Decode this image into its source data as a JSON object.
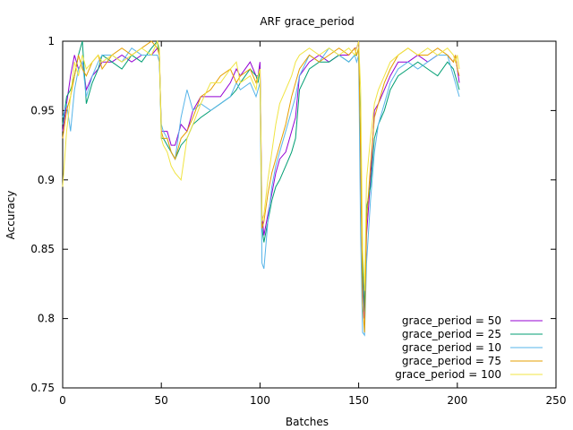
{
  "chart_data": {
    "type": "line",
    "title": "ARF grace_period",
    "xlabel": "Batches",
    "ylabel": "Accuracy",
    "xlim": [
      0,
      250
    ],
    "ylim": [
      0.75,
      1.0
    ],
    "x_ticks": [
      0,
      50,
      100,
      150,
      200,
      250
    ],
    "x_tick_labels": [
      "0",
      "50",
      "100",
      "150",
      "200",
      "250"
    ],
    "y_ticks": [
      0.75,
      0.8,
      0.85,
      0.9,
      0.95,
      1.0
    ],
    "y_tick_labels": [
      "0.75",
      "0.8",
      "0.85",
      "0.9",
      "0.95",
      "1"
    ],
    "grid": false,
    "legend_position": "bottom-right",
    "series": [
      {
        "name": "grace_period = 50",
        "color": "#9400d3",
        "x": [
          0,
          2,
          4,
          6,
          8,
          10,
          12,
          15,
          18,
          20,
          25,
          30,
          35,
          40,
          45,
          48,
          49,
          50,
          51,
          53,
          55,
          57,
          60,
          63,
          66,
          70,
          75,
          80,
          85,
          88,
          90,
          95,
          98,
          99,
          100,
          101,
          102,
          104,
          106,
          108,
          110,
          113,
          116,
          118,
          120,
          125,
          130,
          135,
          140,
          145,
          148,
          149,
          150,
          151,
          152,
          153,
          154,
          156,
          158,
          160,
          163,
          166,
          170,
          175,
          180,
          185,
          190,
          195,
          198,
          199,
          200,
          201
        ],
        "values": [
          0.935,
          0.955,
          0.975,
          0.99,
          0.98,
          0.985,
          0.965,
          0.975,
          0.98,
          0.985,
          0.985,
          0.99,
          0.985,
          0.99,
          0.99,
          0.995,
          0.99,
          0.935,
          0.935,
          0.935,
          0.925,
          0.925,
          0.94,
          0.935,
          0.95,
          0.96,
          0.96,
          0.96,
          0.97,
          0.98,
          0.975,
          0.985,
          0.975,
          0.975,
          0.985,
          0.875,
          0.86,
          0.875,
          0.89,
          0.905,
          0.915,
          0.92,
          0.935,
          0.945,
          0.975,
          0.985,
          0.99,
          0.985,
          0.99,
          0.99,
          0.995,
          0.995,
          1.0,
          0.91,
          0.83,
          0.8,
          0.86,
          0.9,
          0.95,
          0.955,
          0.965,
          0.975,
          0.985,
          0.985,
          0.99,
          0.985,
          0.99,
          0.99,
          0.985,
          0.99,
          0.98,
          0.97
        ]
      },
      {
        "name": "grace_period = 25",
        "color": "#009e73",
        "x": [
          0,
          2,
          4,
          6,
          8,
          10,
          12,
          15,
          18,
          20,
          25,
          30,
          35,
          40,
          45,
          48,
          49,
          50,
          51,
          53,
          55,
          57,
          60,
          63,
          66,
          70,
          75,
          80,
          85,
          88,
          90,
          95,
          98,
          99,
          100,
          101,
          102,
          104,
          106,
          108,
          110,
          113,
          116,
          118,
          120,
          125,
          130,
          135,
          140,
          145,
          148,
          149,
          150,
          151,
          152,
          153,
          154,
          156,
          158,
          160,
          163,
          166,
          170,
          175,
          180,
          185,
          190,
          195,
          198,
          199,
          200,
          201
        ],
        "values": [
          0.94,
          0.96,
          0.965,
          0.975,
          0.99,
          1.0,
          0.955,
          0.97,
          0.98,
          0.99,
          0.985,
          0.98,
          0.99,
          0.985,
          0.995,
          1.0,
          0.99,
          0.93,
          0.93,
          0.925,
          0.92,
          0.915,
          0.925,
          0.93,
          0.94,
          0.945,
          0.95,
          0.955,
          0.96,
          0.965,
          0.97,
          0.98,
          0.975,
          0.97,
          0.98,
          0.865,
          0.855,
          0.87,
          0.885,
          0.895,
          0.9,
          0.91,
          0.92,
          0.93,
          0.965,
          0.98,
          0.985,
          0.985,
          0.99,
          0.985,
          0.99,
          0.99,
          0.995,
          0.93,
          0.84,
          0.805,
          0.88,
          0.895,
          0.93,
          0.94,
          0.95,
          0.965,
          0.975,
          0.98,
          0.985,
          0.98,
          0.975,
          0.985,
          0.98,
          0.975,
          0.97,
          0.965
        ]
      },
      {
        "name": "grace_period = 10",
        "color": "#56b4e9",
        "x": [
          0,
          2,
          4,
          6,
          8,
          10,
          12,
          15,
          18,
          20,
          25,
          30,
          35,
          40,
          45,
          48,
          49,
          50,
          51,
          53,
          55,
          57,
          60,
          63,
          66,
          70,
          75,
          80,
          85,
          88,
          90,
          95,
          98,
          99,
          100,
          101,
          102,
          104,
          106,
          108,
          110,
          113,
          116,
          118,
          120,
          125,
          130,
          135,
          140,
          145,
          148,
          149,
          150,
          151,
          152,
          153,
          154,
          156,
          158,
          160,
          163,
          166,
          170,
          175,
          180,
          185,
          190,
          195,
          198,
          199,
          200,
          201
        ],
        "values": [
          0.945,
          0.955,
          0.935,
          0.965,
          0.98,
          0.985,
          0.96,
          0.975,
          0.985,
          0.99,
          0.99,
          0.985,
          0.995,
          0.99,
          0.99,
          0.99,
          0.985,
          0.94,
          0.935,
          0.93,
          0.92,
          0.915,
          0.945,
          0.965,
          0.95,
          0.955,
          0.95,
          0.955,
          0.96,
          0.97,
          0.965,
          0.97,
          0.96,
          0.965,
          0.97,
          0.84,
          0.836,
          0.87,
          0.895,
          0.91,
          0.92,
          0.935,
          0.95,
          0.96,
          0.975,
          0.99,
          0.985,
          0.995,
          0.99,
          0.985,
          0.99,
          0.985,
          0.99,
          0.86,
          0.79,
          0.788,
          0.84,
          0.885,
          0.92,
          0.94,
          0.955,
          0.97,
          0.98,
          0.985,
          0.98,
          0.985,
          0.99,
          0.99,
          0.975,
          0.97,
          0.965,
          0.96
        ]
      },
      {
        "name": "grace_period = 75",
        "color": "#e69f00",
        "x": [
          0,
          2,
          4,
          6,
          8,
          10,
          12,
          15,
          18,
          20,
          25,
          30,
          35,
          40,
          45,
          48,
          49,
          50,
          51,
          53,
          55,
          57,
          60,
          63,
          66,
          70,
          75,
          80,
          85,
          88,
          90,
          95,
          98,
          99,
          100,
          101,
          102,
          104,
          106,
          108,
          110,
          113,
          116,
          118,
          120,
          125,
          130,
          135,
          140,
          145,
          148,
          149,
          150,
          151,
          152,
          153,
          154,
          156,
          158,
          160,
          163,
          166,
          170,
          175,
          180,
          185,
          190,
          195,
          198,
          199,
          200,
          201
        ],
        "values": [
          0.93,
          0.95,
          0.96,
          0.975,
          0.99,
          0.98,
          0.975,
          0.985,
          0.99,
          0.98,
          0.99,
          0.995,
          0.99,
          0.995,
          1.0,
          0.995,
          0.99,
          0.935,
          0.93,
          0.93,
          0.92,
          0.915,
          0.93,
          0.935,
          0.945,
          0.96,
          0.965,
          0.975,
          0.98,
          0.97,
          0.975,
          0.98,
          0.97,
          0.975,
          0.98,
          0.865,
          0.87,
          0.89,
          0.905,
          0.915,
          0.925,
          0.94,
          0.96,
          0.97,
          0.98,
          0.99,
          0.985,
          0.99,
          0.995,
          0.99,
          0.995,
          0.99,
          0.995,
          0.92,
          0.81,
          0.79,
          0.87,
          0.91,
          0.945,
          0.955,
          0.97,
          0.98,
          0.99,
          0.995,
          0.99,
          0.99,
          0.995,
          0.99,
          0.985,
          0.99,
          0.98,
          0.975
        ]
      },
      {
        "name": "grace_period = 100",
        "color": "#f0e442",
        "x": [
          0,
          2,
          4,
          6,
          8,
          10,
          12,
          15,
          18,
          20,
          25,
          30,
          35,
          40,
          45,
          48,
          49,
          50,
          51,
          53,
          55,
          57,
          60,
          63,
          66,
          70,
          75,
          80,
          85,
          88,
          90,
          95,
          98,
          99,
          100,
          101,
          102,
          104,
          106,
          108,
          110,
          113,
          116,
          118,
          120,
          125,
          130,
          135,
          140,
          145,
          148,
          149,
          150,
          151,
          152,
          153,
          154,
          156,
          158,
          160,
          163,
          166,
          170,
          175,
          180,
          185,
          190,
          195,
          198,
          199,
          200,
          201
        ],
        "values": [
          0.895,
          0.935,
          0.96,
          0.985,
          0.975,
          0.99,
          0.98,
          0.985,
          0.99,
          0.985,
          0.99,
          0.985,
          0.99,
          0.995,
          0.99,
          1.0,
          0.995,
          0.93,
          0.925,
          0.92,
          0.91,
          0.905,
          0.9,
          0.93,
          0.94,
          0.955,
          0.97,
          0.97,
          0.98,
          0.985,
          0.97,
          0.975,
          0.965,
          0.975,
          0.98,
          0.87,
          0.875,
          0.9,
          0.92,
          0.94,
          0.955,
          0.965,
          0.975,
          0.985,
          0.99,
          0.995,
          0.99,
          0.995,
          0.99,
          0.995,
          0.99,
          0.995,
          1.0,
          0.965,
          0.85,
          0.82,
          0.9,
          0.93,
          0.955,
          0.965,
          0.975,
          0.985,
          0.99,
          0.995,
          0.99,
          0.995,
          0.99,
          0.995,
          0.99,
          0.985,
          0.99,
          0.98
        ]
      }
    ]
  }
}
